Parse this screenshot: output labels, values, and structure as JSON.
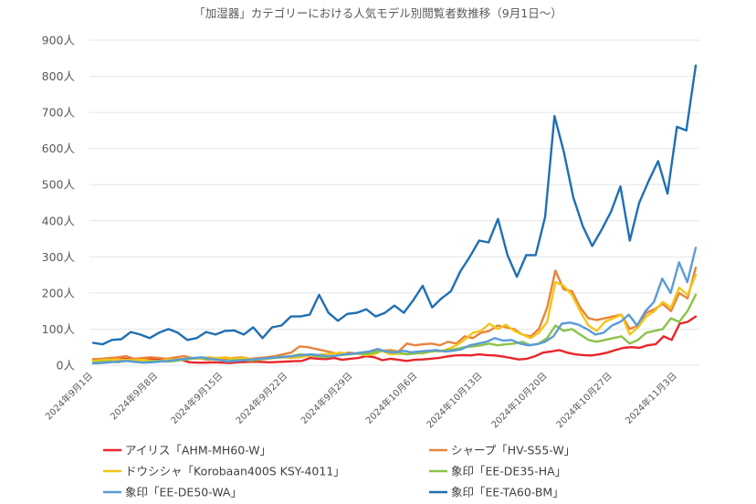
{
  "chart_data": {
    "type": "line",
    "title": "「加湿器」カテゴリーにおける人気モデル別閲覧者数推移（9月1日〜）",
    "xlabel": "",
    "ylabel": "",
    "ylim": [
      0,
      900
    ],
    "y_ticks": [
      "0人",
      "100人",
      "200人",
      "300人",
      "400人",
      "500人",
      "600人",
      "700人",
      "800人",
      "900人"
    ],
    "x_tick_labels": [
      "2024年9月1日",
      "2024年9月8日",
      "2024年9月15日",
      "2024年9月22日",
      "2024年9月29日",
      "2024年10月6日",
      "2024年10月13日",
      "2024年10月20日",
      "2024年10月27日",
      "2024年11月3日"
    ],
    "x_start": "2024-09-01",
    "x_end": "2024-11-05",
    "grid": "horizontal",
    "legend_position": "bottom",
    "series": [
      {
        "name": "アイリス「AHM-MH60-W」",
        "color": "#e8262b",
        "values": [
          15,
          17,
          18,
          20,
          18,
          17,
          18,
          19,
          16,
          17,
          18,
          15,
          8,
          7,
          7,
          8,
          7,
          6,
          8,
          9,
          10,
          9,
          8,
          9,
          10,
          11,
          12,
          20,
          18,
          17,
          20,
          15,
          18,
          20,
          25,
          22,
          14,
          18,
          15,
          12,
          15,
          16,
          18,
          20,
          24,
          27,
          28,
          27,
          30,
          28,
          27,
          24,
          20,
          16,
          18,
          25,
          35,
          38,
          42,
          35,
          30,
          28,
          27,
          30,
          35,
          42,
          48,
          50,
          48,
          55,
          58,
          80,
          70,
          115,
          120,
          135
        ]
      },
      {
        "name": "シャープ「HV-S55-W」",
        "color": "#e8843c",
        "values": [
          17,
          18,
          20,
          22,
          25,
          18,
          20,
          22,
          20,
          18,
          22,
          25,
          20,
          18,
          15,
          20,
          18,
          20,
          22,
          18,
          20,
          22,
          25,
          30,
          35,
          52,
          50,
          45,
          40,
          35,
          30,
          35,
          32,
          35,
          38,
          40,
          42,
          38,
          60,
          55,
          58,
          60,
          55,
          65,
          60,
          80,
          75,
          90,
          95,
          110,
          105,
          100,
          85,
          80,
          100,
          160,
          262,
          210,
          205,
          160,
          130,
          125,
          130,
          135,
          140,
          100,
          110,
          145,
          155,
          170,
          150,
          200,
          185,
          270
        ]
      },
      {
        "name": "ドウシシャ「Korobaan400S KSY-4011」",
        "color": "#f5c518",
        "values": [
          12,
          14,
          15,
          16,
          15,
          14,
          15,
          13,
          12,
          15,
          16,
          18,
          20,
          18,
          22,
          20,
          22,
          18,
          20,
          18,
          16,
          18,
          20,
          22,
          20,
          22,
          25,
          28,
          30,
          32,
          35,
          30,
          32,
          28,
          30,
          40,
          30,
          32,
          30,
          35,
          32,
          40,
          38,
          45,
          55,
          70,
          90,
          95,
          115,
          100,
          112,
          95,
          85,
          75,
          90,
          120,
          230,
          220,
          195,
          150,
          110,
          95,
          120,
          130,
          140,
          85,
          105,
          135,
          150,
          175,
          160,
          215,
          195,
          250
        ]
      },
      {
        "name": "象印「EE-DE35-HA」",
        "color": "#8bc34a",
        "values": [
          8,
          9,
          10,
          8,
          12,
          10,
          8,
          10,
          12,
          10,
          12,
          15,
          18,
          20,
          17,
          15,
          12,
          14,
          15,
          13,
          15,
          18,
          20,
          22,
          25,
          30,
          28,
          25,
          22,
          25,
          28,
          30,
          32,
          30,
          35,
          40,
          38,
          35,
          30,
          32,
          35,
          38,
          40,
          42,
          45,
          50,
          52,
          55,
          60,
          55,
          58,
          60,
          65,
          55,
          60,
          75,
          110,
          95,
          100,
          85,
          70,
          65,
          70,
          75,
          80,
          60,
          70,
          90,
          95,
          100,
          130,
          120,
          150,
          195
        ]
      },
      {
        "name": "象印「EE-DE50-WA」",
        "color": "#5b9bd5",
        "values": [
          5,
          6,
          8,
          10,
          12,
          9,
          7,
          8,
          10,
          12,
          15,
          18,
          20,
          22,
          18,
          15,
          10,
          12,
          14,
          16,
          18,
          20,
          22,
          24,
          25,
          28,
          30,
          28,
          25,
          26,
          30,
          32,
          35,
          38,
          45,
          38,
          35,
          40,
          36,
          38,
          40,
          42,
          38,
          40,
          44,
          55,
          60,
          65,
          75,
          68,
          70,
          60,
          55,
          58,
          65,
          80,
          115,
          118,
          112,
          100,
          85,
          90,
          110,
          120,
          140,
          110,
          150,
          175,
          240,
          200,
          285,
          230,
          325
        ]
      },
      {
        "name": "象印「EE-TA60-BM」",
        "color": "#1f6fb4",
        "values": [
          62,
          58,
          70,
          72,
          92,
          85,
          75,
          90,
          100,
          90,
          70,
          75,
          92,
          85,
          95,
          96,
          85,
          105,
          75,
          105,
          110,
          135,
          135,
          140,
          195,
          145,
          123,
          142,
          145,
          155,
          135,
          145,
          165,
          145,
          180,
          220,
          160,
          185,
          205,
          260,
          300,
          345,
          340,
          405,
          305,
          245,
          305,
          305,
          410,
          690,
          590,
          465,
          385,
          330,
          375,
          425,
          495,
          345,
          450,
          510,
          565,
          475,
          660,
          650,
          830
        ]
      }
    ]
  }
}
